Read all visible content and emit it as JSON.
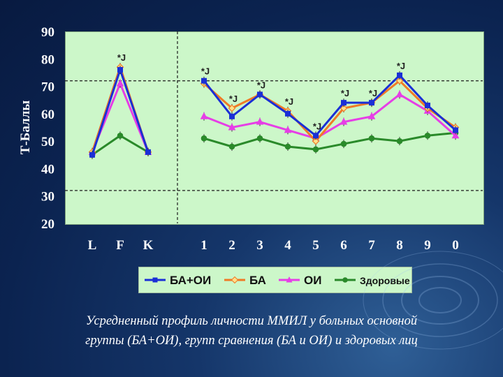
{
  "caption": {
    "line1": "Усредненный профиль личности ММИЛ у больных основной",
    "line2": "группы (БА+ОИ), групп сравнения (БА и ОИ) и здоровых лиц"
  },
  "colors": {
    "background": "#0b2350",
    "plot_bg": "#ccf7c9",
    "ba_oi": "#1a2fd6",
    "ba": "#f07a26",
    "oi": "#e63ee6",
    "healthy": "#2a8a2a"
  },
  "chart_data": {
    "type": "line",
    "ylabel": "Т-Баллы",
    "xlabel": "",
    "ylim": [
      20,
      90
    ],
    "yticks": [
      20,
      30,
      40,
      50,
      60,
      70,
      80,
      90
    ],
    "reference_lines": [
      72,
      32
    ],
    "group_separator": "between K and 1",
    "categories": [
      "L",
      "F",
      "K",
      "1",
      "2",
      "3",
      "4",
      "5",
      "6",
      "7",
      "8",
      "9",
      "0"
    ],
    "legend_position": "bottom",
    "series": [
      {
        "name": "БА+ОИ",
        "marker": "square",
        "color": "#1a2fd6",
        "values": [
          45,
          76,
          46,
          72,
          59,
          67,
          60,
          52,
          64,
          64,
          74,
          63,
          54
        ]
      },
      {
        "name": "БА",
        "marker": "diamond",
        "color": "#f07a26",
        "values": [
          46,
          77,
          46,
          71,
          62,
          67,
          61,
          50,
          62,
          64,
          72,
          62,
          55
        ]
      },
      {
        "name": "ОИ",
        "marker": "triangle",
        "color": "#e63ee6",
        "values": [
          46,
          71,
          46,
          59,
          55,
          57,
          54,
          51,
          57,
          59,
          67,
          61,
          52
        ]
      },
      {
        "name": "Здоровые",
        "marker": "circle",
        "color": "#2a8a2a",
        "values": [
          45,
          52,
          46,
          51,
          48,
          51,
          48,
          47,
          49,
          51,
          50,
          52,
          53
        ]
      }
    ],
    "annotations": [
      {
        "text": "*J",
        "category": "F"
      },
      {
        "text": "*J",
        "category": "1"
      },
      {
        "text": "*J",
        "category": "2"
      },
      {
        "text": "*J",
        "category": "3"
      },
      {
        "text": "*J",
        "category": "4"
      },
      {
        "text": "*J",
        "category": "5"
      },
      {
        "text": "*J",
        "category": "6"
      },
      {
        "text": "*J",
        "category": "7"
      },
      {
        "text": "*J",
        "category": "8"
      }
    ]
  }
}
